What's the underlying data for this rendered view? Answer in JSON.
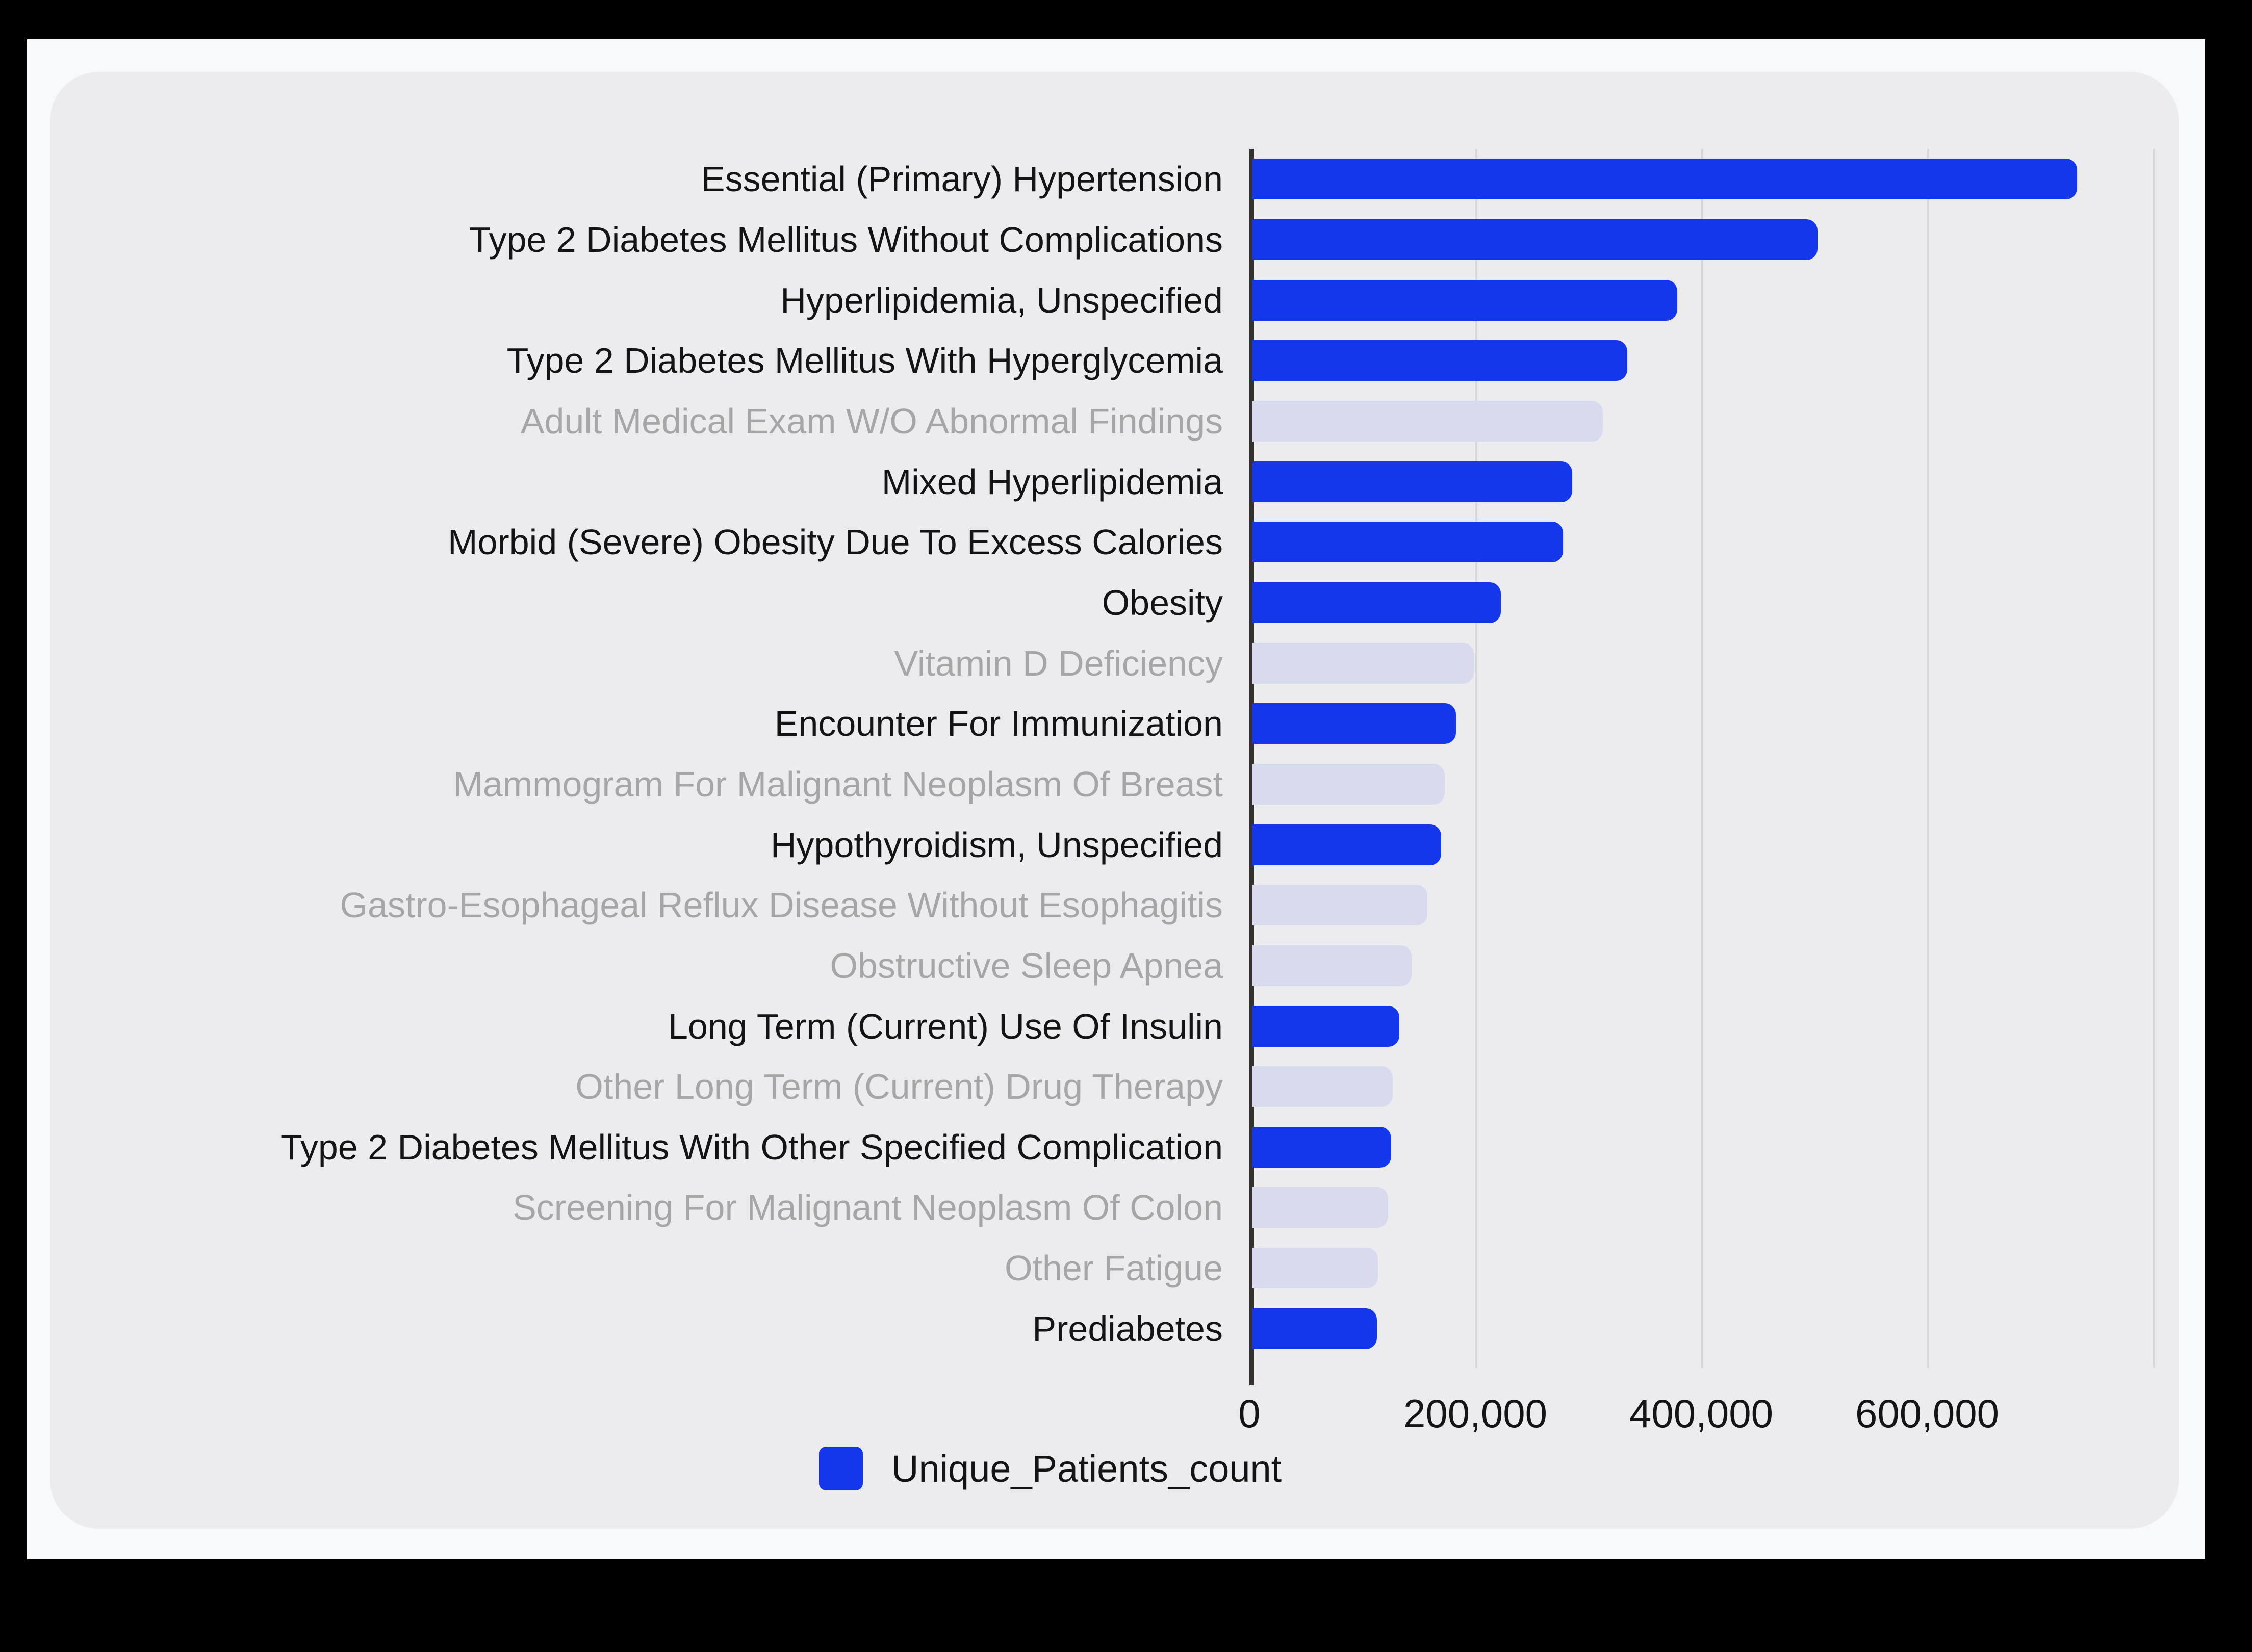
{
  "chart_data": {
    "type": "bar",
    "orientation": "horizontal",
    "title": "",
    "xlabel": "",
    "ylabel": "",
    "xlim": [
      0,
      808000
    ],
    "grid": true,
    "legend_position": "bottom-left",
    "xticks": [
      {
        "value": 0,
        "label": "0"
      },
      {
        "value": 200000,
        "label": "200,000"
      },
      {
        "value": 400000,
        "label": "400,000"
      },
      {
        "value": 600000,
        "label": "600,000"
      },
      {
        "value": 800000,
        "label": ""
      }
    ],
    "series": [
      {
        "name": "Unique_Patients_count"
      }
    ],
    "bars": [
      {
        "label": "Essential (Primary) Hypertension",
        "value": 730000,
        "muted": false
      },
      {
        "label": "Type 2 Diabetes Mellitus Without Complications",
        "value": 500000,
        "muted": false
      },
      {
        "label": "Hyperlipidemia, Unspecified",
        "value": 376000,
        "muted": false
      },
      {
        "label": "Type 2 Diabetes Mellitus With Hyperglycemia",
        "value": 332000,
        "muted": false
      },
      {
        "label": "Adult Medical Exam W/O Abnormal Findings",
        "value": 310000,
        "muted": true
      },
      {
        "label": "Mixed Hyperlipidemia",
        "value": 283000,
        "muted": false
      },
      {
        "label": "Morbid (Severe) Obesity Due To Excess Calories",
        "value": 275000,
        "muted": false
      },
      {
        "label": "Obesity",
        "value": 220000,
        "muted": false
      },
      {
        "label": "Vitamin D Deficiency",
        "value": 196000,
        "muted": true
      },
      {
        "label": "Encounter For Immunization",
        "value": 180000,
        "muted": false
      },
      {
        "label": "Mammogram For Malignant Neoplasm Of Breast",
        "value": 170000,
        "muted": true
      },
      {
        "label": "Hypothyroidism, Unspecified",
        "value": 167000,
        "muted": false
      },
      {
        "label": "Gastro-Esophageal Reflux Disease Without Esophagitis",
        "value": 155000,
        "muted": true
      },
      {
        "label": "Obstructive Sleep Apnea",
        "value": 141000,
        "muted": true
      },
      {
        "label": "Long Term (Current) Use Of Insulin",
        "value": 130000,
        "muted": false
      },
      {
        "label": "Other Long Term (Current) Drug Therapy",
        "value": 124000,
        "muted": true
      },
      {
        "label": "Type 2 Diabetes Mellitus With Other Specified Complication",
        "value": 123000,
        "muted": false
      },
      {
        "label": "Screening For Malignant Neoplasm Of Colon",
        "value": 120000,
        "muted": true
      },
      {
        "label": "Other Fatigue",
        "value": 111000,
        "muted": true
      },
      {
        "label": "Prediabetes",
        "value": 110000,
        "muted": false
      }
    ]
  },
  "legend": {
    "label": "Unique_Patients_count"
  },
  "colors": {
    "bar_blue": "#1437ec",
    "bar_muted": "#d8daee",
    "label_dark": "#141414",
    "label_muted": "#a6a6a6",
    "card_bg": "#ececee",
    "page_bg": "#f8f9fa",
    "outer_bg": "#000000",
    "gridline": "#d7d7d7",
    "axis_line": "#35332f"
  }
}
